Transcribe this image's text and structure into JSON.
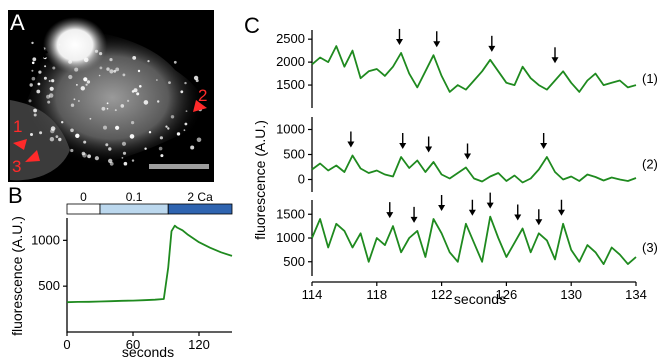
{
  "panels": {
    "a": {
      "letter": "A",
      "asterisk": "*",
      "roi_labels": [
        "1",
        "2",
        "3"
      ],
      "arrow_color": "#ff2a2a"
    },
    "b": {
      "letter": "B",
      "conditions": [
        {
          "label": "0",
          "color": "#ffffff",
          "text_color": "#000000"
        },
        {
          "label": "0.1",
          "color": "#bcd8ee",
          "text_color": "#000000"
        },
        {
          "label": "2 Ca",
          "color": "#2f64b0",
          "text_color": "#ffffff"
        }
      ]
    },
    "c": {
      "letter": "C",
      "trace_labels": [
        "(1)",
        "(2)",
        "(3)"
      ]
    }
  },
  "colors": {
    "trace": "#1f8a1f",
    "roi": "#ff2a2a"
  },
  "chart_data": [
    {
      "id": "B",
      "type": "line",
      "xlabel": "seconds",
      "ylabel": "fluorescence (A.U.)",
      "xlim": [
        0,
        150
      ],
      "ylim": [
        0,
        1200
      ],
      "xticks": [
        0,
        60,
        120
      ],
      "yticks": [
        500,
        1000
      ],
      "x": [
        0,
        10,
        20,
        30,
        40,
        50,
        60,
        70,
        80,
        88,
        92,
        95,
        98,
        100,
        105,
        110,
        120,
        130,
        140,
        150
      ],
      "values": [
        325,
        328,
        330,
        333,
        336,
        340,
        343,
        347,
        352,
        360,
        700,
        1100,
        1160,
        1140,
        1110,
        1060,
        980,
        920,
        870,
        830
      ]
    },
    {
      "id": "C",
      "type": "line",
      "xlabel": "seconds",
      "ylabel": "fluorescence (A.U.)",
      "xlim": [
        114,
        134
      ],
      "xticks": [
        114,
        118,
        122,
        126,
        130,
        134
      ],
      "series": [
        {
          "label": "(1)",
          "ylim": [
            1000,
            2700
          ],
          "yticks": [
            1500,
            2000,
            2500
          ],
          "x": [
            114,
            114.5,
            115,
            115.5,
            116,
            116.5,
            117,
            117.5,
            118,
            118.5,
            119,
            119.5,
            120,
            120.5,
            121,
            121.5,
            122,
            122.5,
            123,
            123.5,
            124,
            124.5,
            125,
            125.5,
            126,
            126.5,
            127,
            127.5,
            128,
            128.5,
            129,
            129.5,
            130,
            130.5,
            131,
            131.5,
            132,
            132.5,
            133,
            133.5,
            134
          ],
          "values": [
            1950,
            2100,
            2000,
            2350,
            1900,
            2250,
            1650,
            1800,
            1850,
            1700,
            1900,
            2200,
            1750,
            1450,
            1800,
            2150,
            1700,
            1350,
            1500,
            1400,
            1600,
            1800,
            2050,
            1800,
            1550,
            1500,
            1900,
            1650,
            1500,
            1400,
            1600,
            1800,
            1550,
            1350,
            1600,
            1750,
            1500,
            1550,
            1600,
            1450,
            1500
          ],
          "arrows": [
            119.4,
            121.7,
            125.1,
            129.0
          ]
        },
        {
          "label": "(2)",
          "ylim": [
            -250,
            1250
          ],
          "yticks": [
            0,
            500,
            1000
          ],
          "x": [
            114,
            114.5,
            115,
            115.5,
            116,
            116.5,
            117,
            117.5,
            118,
            118.5,
            119,
            119.5,
            120,
            120.5,
            121,
            121.5,
            122,
            122.5,
            123,
            123.5,
            124,
            124.5,
            125,
            125.5,
            126,
            126.5,
            127,
            127.5,
            128,
            128.5,
            129,
            129.5,
            130,
            130.5,
            131,
            131.5,
            132,
            132.5,
            133,
            133.5,
            134
          ],
          "values": [
            200,
            320,
            180,
            280,
            150,
            480,
            220,
            130,
            180,
            100,
            60,
            450,
            230,
            380,
            150,
            350,
            100,
            20,
            130,
            240,
            20,
            -40,
            60,
            130,
            -30,
            80,
            -60,
            20,
            200,
            450,
            150,
            0,
            60,
            -30,
            100,
            50,
            -20,
            40,
            0,
            -30,
            30
          ],
          "arrows": [
            116.4,
            119.6,
            121.2,
            123.6,
            128.3
          ]
        },
        {
          "label": "(3)",
          "ylim": [
            200,
            1800
          ],
          "yticks": [
            500,
            1000,
            1500
          ],
          "x": [
            114,
            114.5,
            115,
            115.5,
            116,
            116.5,
            117,
            117.5,
            118,
            118.5,
            119,
            119.5,
            120,
            120.5,
            121,
            121.5,
            122,
            122.5,
            123,
            123.5,
            124,
            124.5,
            125,
            125.5,
            126,
            126.5,
            127,
            127.5,
            128,
            128.5,
            129,
            129.5,
            130,
            130.5,
            131,
            131.5,
            132,
            132.5,
            133,
            133.5,
            134
          ],
          "values": [
            1000,
            1400,
            800,
            1300,
            1150,
            800,
            1100,
            500,
            1000,
            850,
            1250,
            700,
            1000,
            1150,
            600,
            1400,
            1100,
            700,
            500,
            1300,
            900,
            500,
            1450,
            1000,
            600,
            900,
            1200,
            700,
            1100,
            950,
            550,
            1300,
            750,
            500,
            850,
            700,
            450,
            800,
            650,
            450,
            600
          ],
          "arrows": [
            118.8,
            120.3,
            122.0,
            123.9,
            125.0,
            126.7,
            128.0,
            129.4
          ]
        }
      ]
    }
  ]
}
